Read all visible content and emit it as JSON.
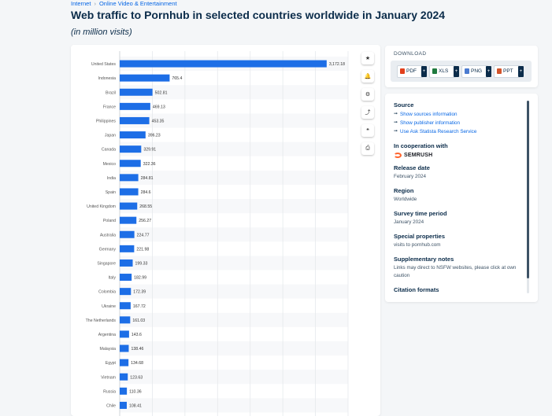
{
  "breadcrumb": [
    "Internet",
    "Online Video & Entertainment"
  ],
  "page": {
    "title": "Web traffic to Pornhub in selected countries worldwide in January 2024",
    "subtitle": "(in million visits)"
  },
  "tools": [
    {
      "name": "favorite-icon",
      "glyph": "★"
    },
    {
      "name": "notification-icon",
      "glyph": "🔔"
    },
    {
      "name": "settings-icon",
      "glyph": "⚙"
    },
    {
      "name": "share-icon",
      "glyph": "⤴"
    },
    {
      "name": "cite-icon",
      "glyph": "❝"
    },
    {
      "name": "print-icon",
      "glyph": "⎙"
    }
  ],
  "download": {
    "label": "DOWNLOAD",
    "buttons": [
      {
        "label": "PDF",
        "color": "#e2401c"
      },
      {
        "label": "XLS",
        "color": "#1f7a3f"
      },
      {
        "label": "PNG",
        "color": "#4b7bd0"
      },
      {
        "label": "PPT",
        "color": "#d2542b"
      }
    ]
  },
  "info": {
    "source_h": "Source",
    "links": [
      "Show sources information",
      "Show publisher information",
      "Use Ask Statista Research Service"
    ],
    "coop_h": "In cooperation with",
    "coop_name": "SEMRUSH",
    "release_h": "Release date",
    "release": "February 2024",
    "region_h": "Region",
    "region": "Worldwide",
    "survey_h": "Survey time period",
    "survey": "January 2024",
    "special_h": "Special properties",
    "special": "visits to pornhub.com",
    "notes_h": "Supplementary notes",
    "notes": "Links may direct to NSFW websites, please click at own caution",
    "citation_h": "Citation formats"
  },
  "chart_data": {
    "type": "bar",
    "orientation": "horizontal",
    "bar_color": "#1d6ee6",
    "categories": [
      "United States",
      "Indonesia",
      "Brazil",
      "France",
      "Philippines",
      "Japan",
      "Canada",
      "Mexico",
      "India",
      "Spain",
      "United Kingdom",
      "Poland",
      "Australia",
      "Germany",
      "Singapore",
      "Italy",
      "Colombia",
      "Ukraine",
      "The Netherlands",
      "Argentina",
      "Malaysia",
      "Egypt",
      "Vietnam",
      "Russia",
      "Chile"
    ],
    "values": [
      3172.18,
      765.4,
      502.81,
      469.13,
      453.35,
      396.23,
      329.91,
      322.36,
      284.81,
      284.6,
      268.55,
      256.27,
      224.77,
      221.98,
      199.33,
      182.99,
      172.39,
      167.72,
      161.03,
      143.6,
      138.46,
      134.68,
      123.63,
      110.36,
      108.41
    ],
    "labels": [
      "3,172.18",
      "765.4",
      "502.81",
      "469.13",
      "453.35",
      "396.23",
      "329.91",
      "322.36",
      "284.81",
      "284.6",
      "268.55",
      "256.27",
      "224.77",
      "221.98",
      "199.33",
      "182.99",
      "172.39",
      "167.72",
      "161.03",
      "143.6",
      "138.46",
      "134.68",
      "123.63",
      "110.36",
      "108.41"
    ],
    "xlim": [
      0,
      3500
    ],
    "grid": true
  }
}
